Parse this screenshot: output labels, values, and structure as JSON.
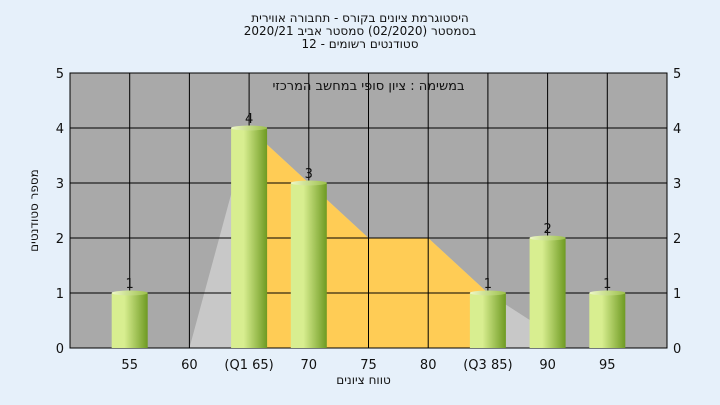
{
  "chart_data": {
    "type": "bar",
    "title_lines": [
      "היסטוגרמת ציונים בקורס - תחבורה אווירית",
      "בסמסטר  (02/2020)  סמסטר אביב 2020/21",
      "סטודנטים רשומים - 12"
    ],
    "annotation": "במשימה : ציון סופי במחשב המרכזי",
    "xlabel": "טווח ציונים",
    "ylabel": "מספר סטודנטים",
    "x_ticks": [
      "55",
      "60",
      "(Q1 65)",
      "70",
      "75",
      "80",
      "(Q3 85)",
      "90",
      "95"
    ],
    "ylim": [
      0,
      5
    ],
    "y_ticks": [
      "0",
      "1",
      "2",
      "3",
      "4",
      "5"
    ],
    "bars": [
      {
        "x": 55,
        "value": 1
      },
      {
        "x": 65,
        "value": 4
      },
      {
        "x": 70,
        "value": 3
      },
      {
        "x": 85,
        "value": 1
      },
      {
        "x": 90,
        "value": 2
      },
      {
        "x": 95,
        "value": 1
      }
    ],
    "iqr_area": {
      "x": [
        65,
        70,
        75,
        80,
        85
      ],
      "values": [
        4,
        3,
        2,
        2,
        1
      ],
      "color": "#ffcc55"
    },
    "outline_area": {
      "x": [
        60,
        65,
        70,
        75,
        80,
        85,
        90
      ],
      "values": [
        0,
        4,
        3,
        2,
        2,
        1,
        0.3
      ],
      "color": "#c8c8c8"
    },
    "colors": {
      "plot_bg": "#a9a9a9",
      "bar_light": "#d8ee90",
      "bar_dark": "#6e9a22",
      "grid": "#000000"
    },
    "grid": true
  }
}
